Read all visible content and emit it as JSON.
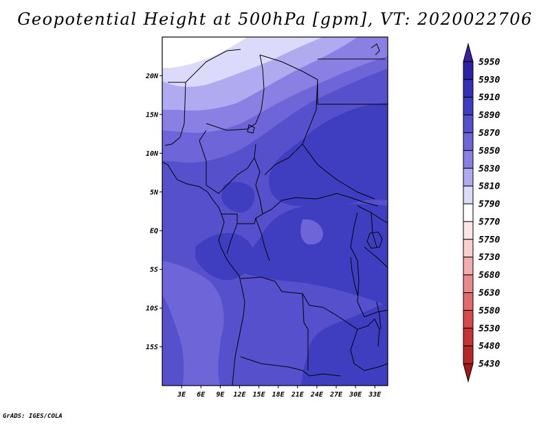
{
  "title": "Geopotential Height at 500hPa [gpm], VT: 2020022706",
  "credit": "GrADS: IGES/COLA",
  "map": {
    "lon_range": [
      0,
      35
    ],
    "lat_range": [
      -20,
      25
    ],
    "lat_ticks": [
      {
        "lat": 20,
        "label": "20N"
      },
      {
        "lat": 15,
        "label": "15N"
      },
      {
        "lat": 10,
        "label": "10N"
      },
      {
        "lat": 5,
        "label": "5N"
      },
      {
        "lat": 0,
        "label": "EQ"
      },
      {
        "lat": -5,
        "label": "5S"
      },
      {
        "lat": -10,
        "label": "10S"
      },
      {
        "lat": -15,
        "label": "15S"
      }
    ],
    "lon_ticks": [
      {
        "lon": 3,
        "label": "3E"
      },
      {
        "lon": 6,
        "label": "6E"
      },
      {
        "lon": 9,
        "label": "9E"
      },
      {
        "lon": 12,
        "label": "12E"
      },
      {
        "lon": 15,
        "label": "15E"
      },
      {
        "lon": 18,
        "label": "18E"
      },
      {
        "lon": 21,
        "label": "21E"
      },
      {
        "lon": 24,
        "label": "24E"
      },
      {
        "lon": 27,
        "label": "27E"
      },
      {
        "lon": 30,
        "label": "30E"
      },
      {
        "lon": 33,
        "label": "33E"
      }
    ]
  },
  "colorbar": {
    "levels": [
      {
        "label": "5950",
        "color": "#3b1fa0"
      },
      {
        "label": "5930",
        "color": "#2e22a4"
      },
      {
        "label": "5910",
        "color": "#3530b4"
      },
      {
        "label": "5890",
        "color": "#3f3ec0"
      },
      {
        "label": "5870",
        "color": "#5650cc"
      },
      {
        "label": "5850",
        "color": "#6e66d8"
      },
      {
        "label": "5830",
        "color": "#8a80e4"
      },
      {
        "label": "5810",
        "color": "#b0aaf0"
      },
      {
        "label": "5790",
        "color": "#dcdafa"
      },
      {
        "label": "5770",
        "color": "#ffffff"
      },
      {
        "label": "5750",
        "color": "#fde6e6"
      },
      {
        "label": "5730",
        "color": "#f9cfcf"
      },
      {
        "label": "5680",
        "color": "#f2acac"
      },
      {
        "label": "5630",
        "color": "#e98a8a"
      },
      {
        "label": "5580",
        "color": "#e06a6a"
      },
      {
        "label": "5530",
        "color": "#d84a4a"
      },
      {
        "label": "5480",
        "color": "#c83434"
      },
      {
        "label": "5430",
        "color": "#b82626"
      },
      {
        "label": "",
        "color": "#a01818"
      }
    ]
  },
  "colors": {
    "z5770": "#ffffff",
    "z5790": "#dcdafa",
    "z5810": "#b0aaf0",
    "z5830": "#8a80e4",
    "z5850": "#6e66d8",
    "z5870": "#5650cc",
    "z5890": "#3f3ec0"
  }
}
